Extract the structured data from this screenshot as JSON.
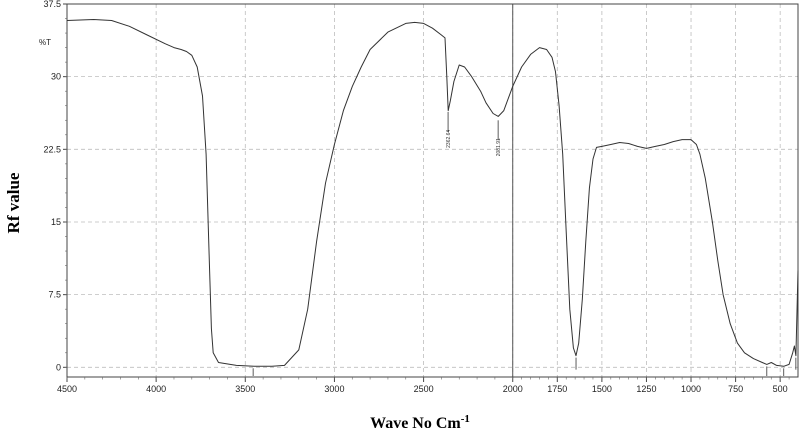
{
  "chart_data": {
    "type": "line",
    "title": "",
    "xlabel": "Wave No Cm",
    "xlabel_superscript": "-1",
    "ylabel": "Rf value",
    "y_unit": "%T",
    "xlim": [
      4500,
      400
    ],
    "ylim": [
      -1,
      37.5
    ],
    "x_ticks": [
      4500,
      4000,
      3500,
      3000,
      2500,
      2000,
      1750,
      1500,
      1250,
      1000,
      750,
      500
    ],
    "x_tick_labels": [
      "4500",
      "4000",
      "3500",
      "3000",
      "2500",
      "2000",
      "1750",
      "1500",
      "1250",
      "1000",
      "750",
      "500"
    ],
    "y_ticks": [
      0,
      7.5,
      15,
      22.5,
      30,
      37.5
    ],
    "y_tick_labels": [
      "0",
      "7.5",
      "15",
      "22.5",
      "30",
      "37.5"
    ],
    "grid": true,
    "reference_line_x": 2000,
    "series": [
      {
        "values": [
          [
            4500,
            35.8
          ],
          [
            4350,
            35.9
          ],
          [
            4250,
            35.8
          ],
          [
            4150,
            35.2
          ],
          [
            4050,
            34.3
          ],
          [
            3950,
            33.4
          ],
          [
            3900,
            33.0
          ],
          [
            3860,
            32.8
          ],
          [
            3830,
            32.6
          ],
          [
            3800,
            32.2
          ],
          [
            3770,
            31.0
          ],
          [
            3740,
            28.0
          ],
          [
            3720,
            22.0
          ],
          [
            3700,
            10.0
          ],
          [
            3690,
            4.0
          ],
          [
            3680,
            1.5
          ],
          [
            3650,
            0.5
          ],
          [
            3550,
            0.2
          ],
          [
            3450,
            0.1
          ],
          [
            3350,
            0.1
          ],
          [
            3280,
            0.2
          ],
          [
            3200,
            1.8
          ],
          [
            3150,
            6.0
          ],
          [
            3100,
            13.0
          ],
          [
            3050,
            19.0
          ],
          [
            3000,
            23.0
          ],
          [
            2950,
            26.5
          ],
          [
            2900,
            29.0
          ],
          [
            2850,
            31.0
          ],
          [
            2800,
            32.8
          ],
          [
            2700,
            34.6
          ],
          [
            2600,
            35.5
          ],
          [
            2550,
            35.6
          ],
          [
            2500,
            35.5
          ],
          [
            2450,
            35.0
          ],
          [
            2400,
            34.3
          ],
          [
            2380,
            34.0
          ],
          [
            2370,
            30.0
          ],
          [
            2362,
            26.5
          ],
          [
            2350,
            27.5
          ],
          [
            2330,
            29.5
          ],
          [
            2300,
            31.2
          ],
          [
            2270,
            31.0
          ],
          [
            2230,
            30.0
          ],
          [
            2180,
            28.5
          ],
          [
            2150,
            27.3
          ],
          [
            2110,
            26.2
          ],
          [
            2081,
            25.9
          ],
          [
            2050,
            26.5
          ],
          [
            2000,
            29.0
          ],
          [
            1950,
            31.0
          ],
          [
            1900,
            32.3
          ],
          [
            1850,
            33.0
          ],
          [
            1810,
            32.8
          ],
          [
            1780,
            32.0
          ],
          [
            1760,
            30.5
          ],
          [
            1740,
            27.0
          ],
          [
            1720,
            22.0
          ],
          [
            1700,
            14.0
          ],
          [
            1680,
            6.0
          ],
          [
            1660,
            2.0
          ],
          [
            1645,
            1.2
          ],
          [
            1630,
            2.5
          ],
          [
            1610,
            7.0
          ],
          [
            1590,
            13.0
          ],
          [
            1570,
            18.5
          ],
          [
            1550,
            21.5
          ],
          [
            1530,
            22.7
          ],
          [
            1500,
            22.8
          ],
          [
            1450,
            23.0
          ],
          [
            1400,
            23.2
          ],
          [
            1350,
            23.1
          ],
          [
            1300,
            22.8
          ],
          [
            1250,
            22.6
          ],
          [
            1200,
            22.8
          ],
          [
            1150,
            23.0
          ],
          [
            1100,
            23.3
          ],
          [
            1050,
            23.5
          ],
          [
            1000,
            23.5
          ],
          [
            970,
            23.0
          ],
          [
            950,
            22.0
          ],
          [
            920,
            19.5
          ],
          [
            880,
            15.0
          ],
          [
            850,
            11.0
          ],
          [
            820,
            7.5
          ],
          [
            780,
            4.5
          ],
          [
            740,
            2.5
          ],
          [
            700,
            1.5
          ],
          [
            650,
            0.9
          ],
          [
            600,
            0.5
          ],
          [
            575,
            0.3
          ],
          [
            550,
            0.5
          ],
          [
            520,
            0.2
          ],
          [
            480,
            0.1
          ],
          [
            450,
            0.3
          ],
          [
            430,
            1.5
          ],
          [
            420,
            2.2
          ],
          [
            412,
            1.2
          ],
          [
            400,
            10.0
          ]
        ]
      }
    ],
    "peak_marks": [
      {
        "x": 3456,
        "label": ""
      },
      {
        "x": 2362.64,
        "label": "2362.64"
      },
      {
        "x": 2081.91,
        "label": "2081.91"
      },
      {
        "x": 1645,
        "label": ""
      },
      {
        "x": 575,
        "label": ""
      },
      {
        "x": 480,
        "label": ""
      },
      {
        "x": 412,
        "label": ""
      }
    ]
  }
}
